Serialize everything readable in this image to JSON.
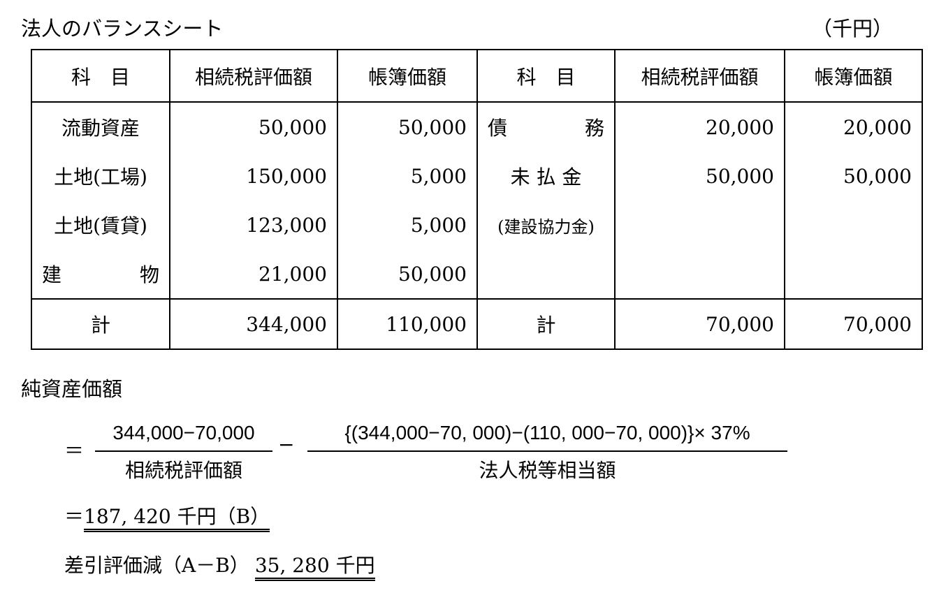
{
  "title": "法人のバランスシート",
  "unit": "（千円）",
  "table": {
    "headers": [
      "科　目",
      "相続税評価額",
      "帳簿価額",
      "科　目",
      "相続税評価額",
      "帳簿価額"
    ],
    "rows": [
      [
        "流動資産",
        "50,000",
        "50,000",
        "債　務",
        "20,000",
        "20,000"
      ],
      [
        "土地(工場)",
        "150,000",
        "5,000",
        "未 払 金",
        "50,000",
        "50,000"
      ],
      [
        "土地(賃貸)",
        "123,000",
        "5,000",
        "(建設協力金)",
        "",
        ""
      ],
      [
        "建　物",
        "21,000",
        "50,000",
        "",
        "",
        ""
      ]
    ],
    "total": [
      "計",
      "344,000",
      "110,000",
      "計",
      "70,000",
      "70,000"
    ]
  },
  "net_assets": {
    "label": "純資産価額",
    "eq": "＝",
    "frac1_num": "344,000−70,000",
    "frac1_den": "相続税評価額",
    "minus": "−",
    "frac2_num": "{(344,000−70, 000)−(110, 000−70, 000)}× 37%",
    "frac2_den": "法人税等相当額",
    "result_eq": "＝",
    "result": "187, 420 千円（B）",
    "diff_label": "差引評価減（A－B）",
    "diff_value": "35, 280 千円"
  }
}
